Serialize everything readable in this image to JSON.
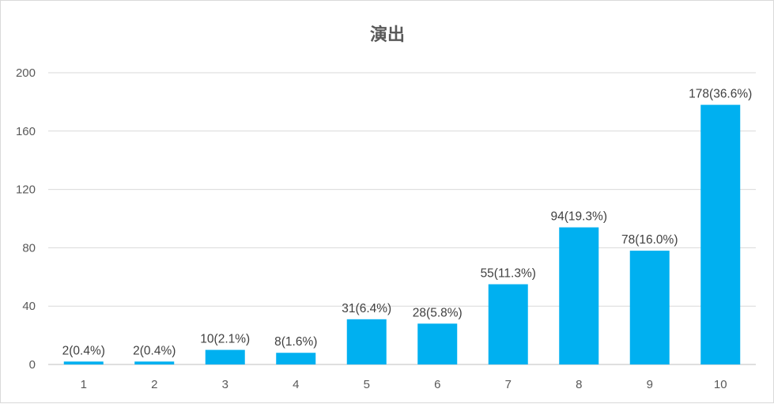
{
  "chart_data": {
    "type": "bar",
    "title": "演出",
    "xlabel": "",
    "ylabel": "",
    "categories": [
      "1",
      "2",
      "3",
      "4",
      "5",
      "6",
      "7",
      "8",
      "9",
      "10"
    ],
    "values": [
      2,
      2,
      10,
      8,
      31,
      28,
      55,
      94,
      78,
      178
    ],
    "data_labels": [
      "2(0.4%)",
      "2(0.4%)",
      "10(2.1%)",
      "8(1.6%)",
      "31(6.4%)",
      "28(5.8%)",
      "55(11.3%)",
      "94(19.3%)",
      "78(16.0%)",
      "178(36.6%)"
    ],
    "y_ticks": [
      "0",
      "40",
      "80",
      "120",
      "160",
      "200"
    ],
    "ylim": [
      0,
      200
    ],
    "grid": true,
    "legend": "none",
    "bar_color": "#00b0f0"
  }
}
